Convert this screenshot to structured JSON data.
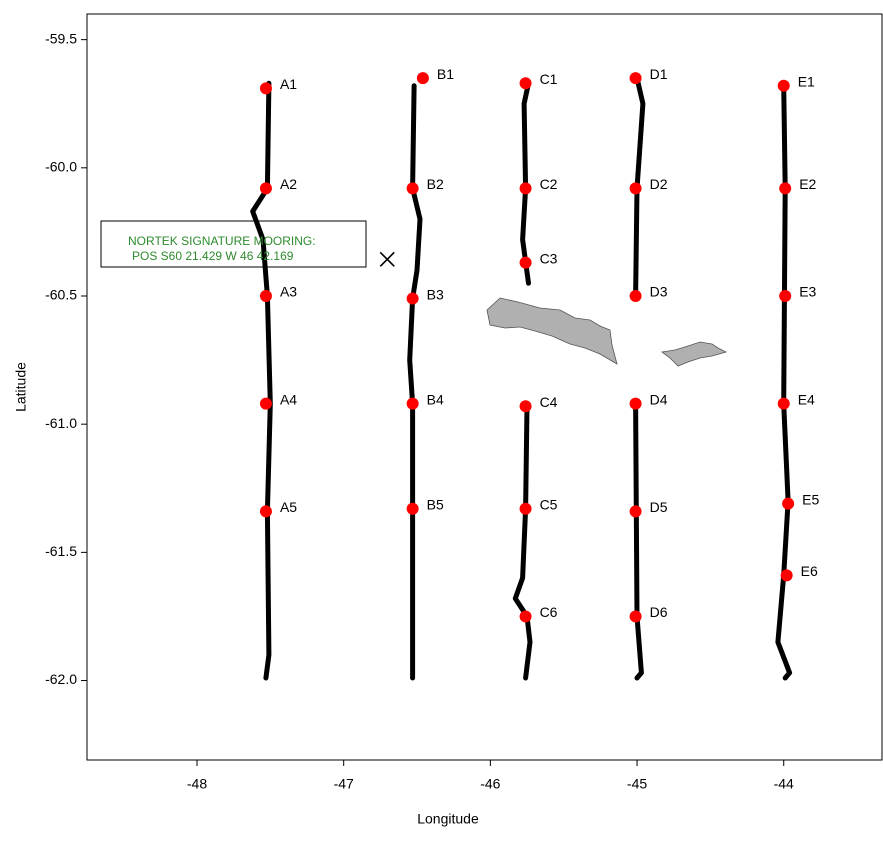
{
  "chart_data": {
    "type": "scatter",
    "xlabel": "Longitude",
    "ylabel": "Latitude",
    "xlim": [
      -48.75,
      -43.33
    ],
    "ylim": [
      -62.31,
      -59.4
    ],
    "xticks": [
      -48,
      -47,
      -46,
      -45,
      -44
    ],
    "yticks": [
      -59.5,
      {
        "value": -60,
        "label": "-60.0"
      },
      -60.5,
      {
        "value": -61,
        "label": "-61.0"
      },
      -61.5,
      {
        "value": -62,
        "label": "-62.0"
      }
    ],
    "grid": false,
    "track_color": "#000000",
    "tracks": [
      {
        "x": [
          -47.51,
          -47.52,
          -47.62,
          -47.55,
          -47.52,
          -47.5,
          -47.52,
          -47.51,
          -47.53
        ],
        "y": [
          -59.67,
          -60.08,
          -60.17,
          -60.28,
          -60.5,
          -60.92,
          -61.34,
          -61.9,
          -61.99
        ]
      },
      {
        "x": [
          -46.52,
          -46.53,
          -46.48,
          -46.5,
          -46.53,
          -46.55,
          -46.53,
          -46.53
        ],
        "y": [
          -59.68,
          -60.08,
          -60.2,
          -60.4,
          -60.51,
          -60.75,
          -60.92,
          -61.99
        ]
      },
      {
        "x": [
          -45.74,
          -45.77,
          -45.76,
          -45.78,
          -45.74,
          null,
          -45.75,
          -45.76,
          -45.78,
          -45.83,
          -45.75,
          -45.73,
          -45.76
        ],
        "y": [
          -59.67,
          -59.75,
          -60.08,
          -60.28,
          -60.45,
          null,
          -60.93,
          -61.33,
          -61.6,
          -61.68,
          -61.75,
          -61.85,
          -61.99
        ]
      },
      {
        "x": [
          -45.0,
          -44.96,
          -45.0,
          -45.01,
          null,
          -45.01,
          -45.0,
          -44.97,
          -45.0
        ],
        "y": [
          -59.65,
          -59.75,
          -60.08,
          -60.5,
          null,
          -60.92,
          -61.75,
          -61.97,
          -61.99
        ]
      },
      {
        "x": [
          -44.0,
          -43.99,
          -44.0,
          -43.97,
          -44.0,
          -44.04,
          -43.96,
          -43.99
        ],
        "y": [
          -59.68,
          -60.08,
          -60.92,
          -61.3,
          -61.59,
          -61.85,
          -61.97,
          -61.99
        ]
      }
    ],
    "stations": {
      "color": "#ff0000",
      "labels": [
        "A1",
        "A2",
        "A3",
        "A4",
        "A5",
        "B1",
        "B2",
        "B3",
        "B4",
        "B5",
        "C1",
        "C2",
        "C3",
        "C4",
        "C5",
        "C6",
        "D1",
        "D2",
        "D3",
        "D4",
        "D5",
        "D6",
        "E1",
        "E2",
        "E3",
        "E4",
        "E5",
        "E6"
      ],
      "x": [
        -47.53,
        -47.53,
        -47.53,
        -47.53,
        -47.53,
        -46.46,
        -46.53,
        -46.53,
        -46.53,
        -46.53,
        -45.76,
        -45.76,
        -45.76,
        -45.76,
        -45.76,
        -45.76,
        -45.01,
        -45.01,
        -45.01,
        -45.01,
        -45.01,
        -45.01,
        -44.0,
        -43.99,
        -43.99,
        -44.0,
        -43.97,
        -43.98
      ],
      "y": [
        -59.69,
        -60.08,
        -60.5,
        -60.92,
        -61.34,
        -59.65,
        -60.08,
        -60.51,
        -60.92,
        -61.33,
        -59.67,
        -60.08,
        -60.37,
        -60.93,
        -61.33,
        -61.75,
        -59.65,
        -60.08,
        -60.5,
        -60.92,
        -61.34,
        -61.75,
        -59.68,
        -60.08,
        -60.5,
        -60.92,
        -61.31,
        -61.59
      ]
    },
    "mooring": {
      "x": -46.703,
      "y": -60.357,
      "annotation": [
        "NORTEK SIGNATURE MOORING:",
        "POS S60 21.429 W 46 42.169"
      ],
      "annotation_color": "#2e8b2e"
    }
  }
}
